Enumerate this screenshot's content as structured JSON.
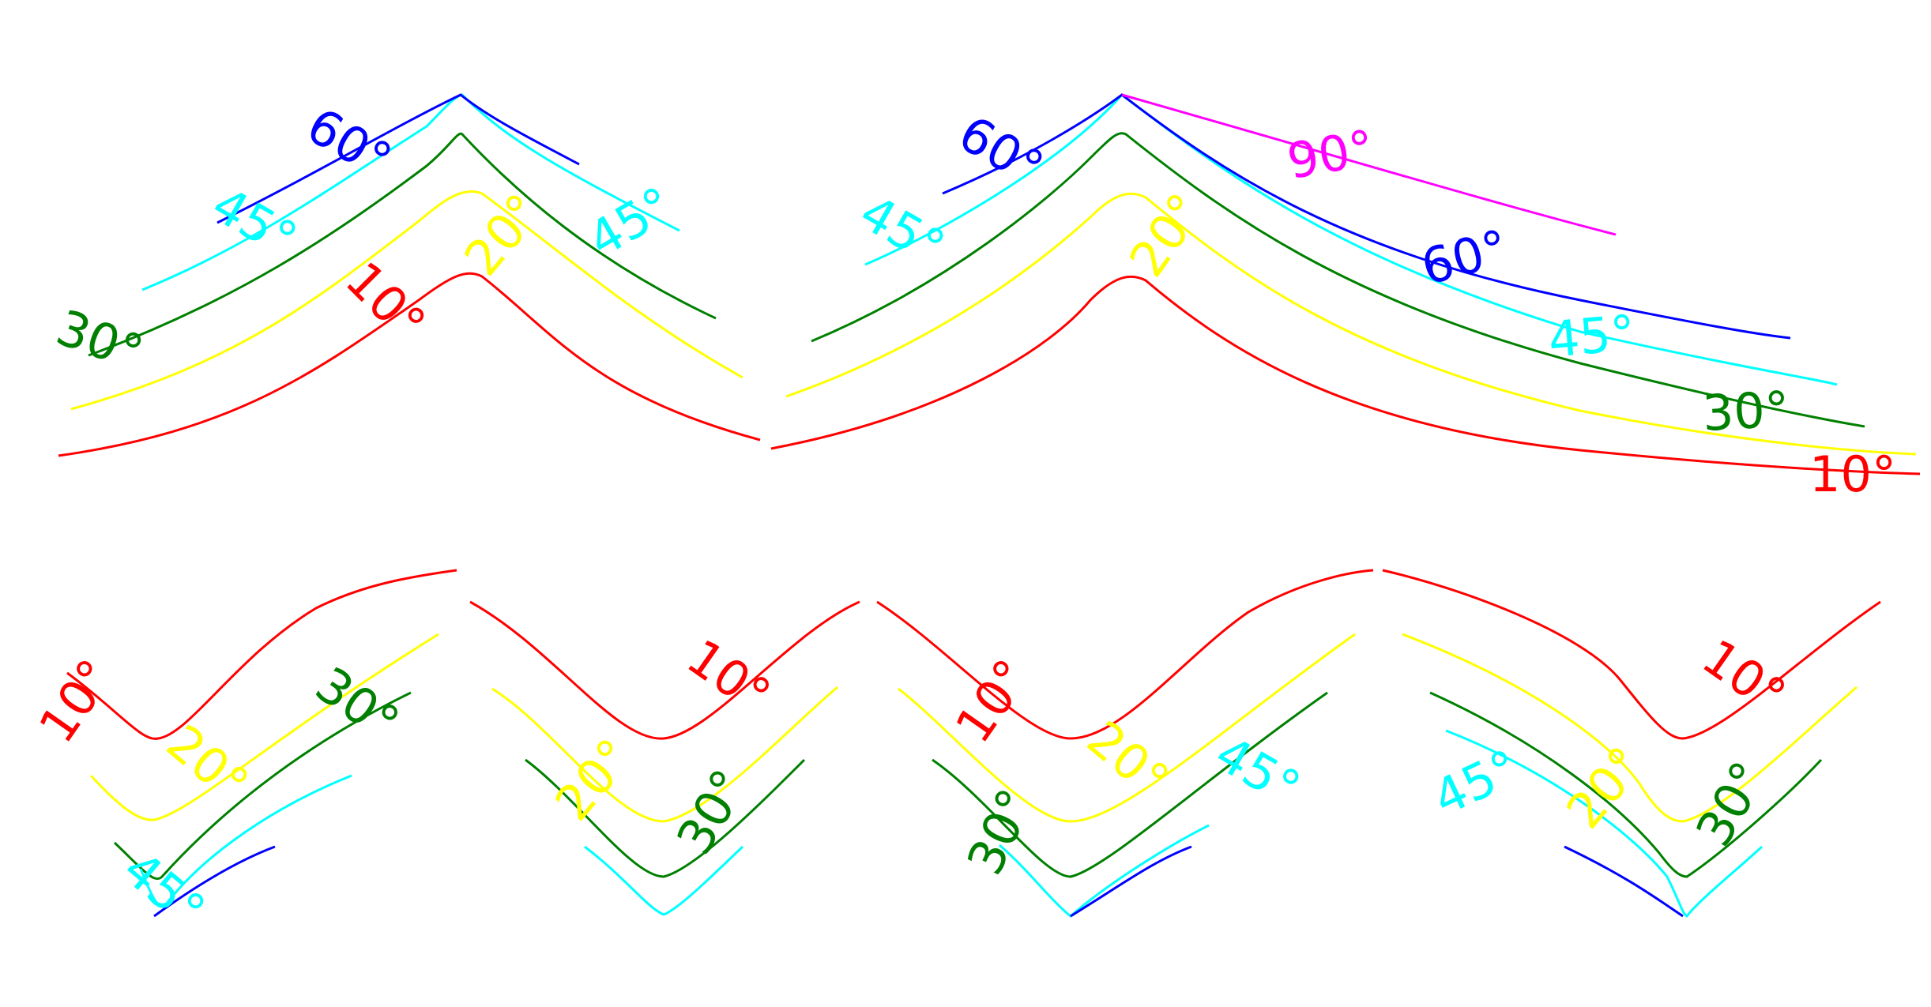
{
  "colors": {
    "10": "#ff0000",
    "20": "#ffff00",
    "30": "#008000",
    "45": "#00ffff",
    "60": "#0000ff",
    "90": "#ff00ff"
  },
  "labels": [
    {
      "panel": "top-left",
      "text": "60°",
      "color": "60"
    },
    {
      "panel": "top-left",
      "text": "45°",
      "color": "45"
    },
    {
      "panel": "top-left",
      "text": "45°",
      "color": "45"
    },
    {
      "panel": "top-left",
      "text": "20°",
      "color": "20"
    },
    {
      "panel": "top-left",
      "text": "10°",
      "color": "10"
    },
    {
      "panel": "top-left",
      "text": "30°",
      "color": "30"
    },
    {
      "panel": "top-right",
      "text": "60°",
      "color": "60"
    },
    {
      "panel": "top-right",
      "text": "45°",
      "color": "45"
    },
    {
      "panel": "top-right",
      "text": "20°",
      "color": "20"
    },
    {
      "panel": "top-right",
      "text": "90°",
      "color": "90"
    },
    {
      "panel": "top-right",
      "text": "60°",
      "color": "60"
    },
    {
      "panel": "top-right",
      "text": "45°",
      "color": "45"
    },
    {
      "panel": "top-right",
      "text": "30°",
      "color": "30"
    },
    {
      "panel": "top-right",
      "text": "10°",
      "color": "10"
    },
    {
      "panel": "bottom-1",
      "text": "10°",
      "color": "10"
    },
    {
      "panel": "bottom-1",
      "text": "20°",
      "color": "20"
    },
    {
      "panel": "bottom-1",
      "text": "30°",
      "color": "30"
    },
    {
      "panel": "bottom-1",
      "text": "45°",
      "color": "45"
    },
    {
      "panel": "bottom-2",
      "text": "10°",
      "color": "10"
    },
    {
      "panel": "bottom-2",
      "text": "20°",
      "color": "20"
    },
    {
      "panel": "bottom-2",
      "text": "30°",
      "color": "30"
    },
    {
      "panel": "bottom-3",
      "text": "10°",
      "color": "10"
    },
    {
      "panel": "bottom-3",
      "text": "20°",
      "color": "20"
    },
    {
      "panel": "bottom-3",
      "text": "30°",
      "color": "30"
    },
    {
      "panel": "bottom-3",
      "text": "45°",
      "color": "45"
    },
    {
      "panel": "bottom-4",
      "text": "10°",
      "color": "10"
    },
    {
      "panel": "bottom-4",
      "text": "20°",
      "color": "20"
    },
    {
      "panel": "bottom-4",
      "text": "30°",
      "color": "30"
    },
    {
      "panel": "bottom-4",
      "text": "45°",
      "color": "45"
    }
  ]
}
